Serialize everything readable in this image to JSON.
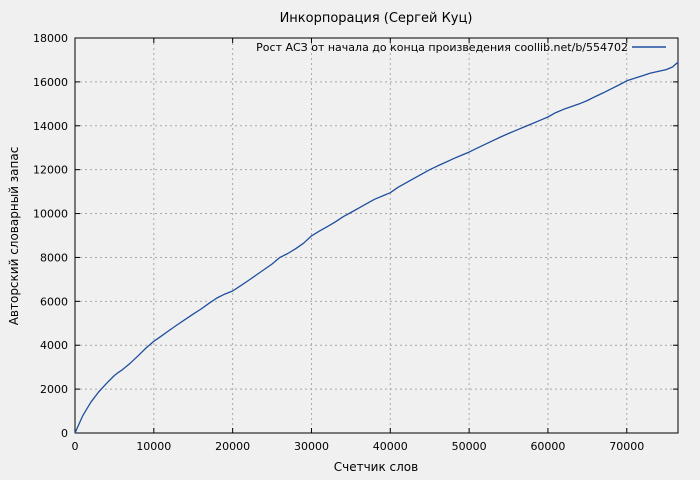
{
  "figure": {
    "background_color": "#f0f0f0",
    "plot_border_color": "#000000",
    "grid_color": "#a8a8a8",
    "text_color": "#000000"
  },
  "chart_data": {
    "type": "line",
    "title": "Инкорпорация (Сергей Куц)",
    "xlabel": "Счетчик слов",
    "ylabel": "Авторский словарный запас",
    "xlim": [
      0,
      76500
    ],
    "ylim": [
      0,
      18000
    ],
    "x_ticks": [
      0,
      10000,
      20000,
      30000,
      40000,
      50000,
      60000,
      70000
    ],
    "y_ticks": [
      0,
      2000,
      4000,
      6000,
      8000,
      10000,
      12000,
      14000,
      16000,
      18000
    ],
    "grid": true,
    "grid_style": "dashed",
    "legend_position": "top-right-inside",
    "series": [
      {
        "name": "Рост АСЗ от начала до конца произведения  coollib.net/b/554702",
        "color": "#1f4e9f",
        "points": [
          [
            0,
            0
          ],
          [
            1000,
            800
          ],
          [
            2000,
            1400
          ],
          [
            3000,
            1870
          ],
          [
            4000,
            2260
          ],
          [
            5000,
            2620
          ],
          [
            5500,
            2760
          ],
          [
            6000,
            2880
          ],
          [
            7000,
            3180
          ],
          [
            8000,
            3520
          ],
          [
            9000,
            3870
          ],
          [
            10000,
            4180
          ],
          [
            11000,
            4430
          ],
          [
            12000,
            4690
          ],
          [
            13000,
            4940
          ],
          [
            14000,
            5180
          ],
          [
            15000,
            5420
          ],
          [
            16000,
            5650
          ],
          [
            17000,
            5910
          ],
          [
            18000,
            6150
          ],
          [
            19000,
            6330
          ],
          [
            20000,
            6470
          ],
          [
            21000,
            6710
          ],
          [
            22000,
            6950
          ],
          [
            23000,
            7200
          ],
          [
            24000,
            7450
          ],
          [
            25000,
            7700
          ],
          [
            26000,
            8000
          ],
          [
            27000,
            8180
          ],
          [
            28000,
            8400
          ],
          [
            29000,
            8650
          ],
          [
            30000,
            8980
          ],
          [
            31000,
            9200
          ],
          [
            32000,
            9400
          ],
          [
            33000,
            9610
          ],
          [
            34000,
            9850
          ],
          [
            35000,
            10050
          ],
          [
            36000,
            10250
          ],
          [
            37000,
            10450
          ],
          [
            38000,
            10650
          ],
          [
            39000,
            10800
          ],
          [
            40000,
            10950
          ],
          [
            41000,
            11200
          ],
          [
            42000,
            11400
          ],
          [
            43000,
            11600
          ],
          [
            44000,
            11800
          ],
          [
            45000,
            12000
          ],
          [
            46000,
            12170
          ],
          [
            47000,
            12330
          ],
          [
            48000,
            12500
          ],
          [
            49000,
            12650
          ],
          [
            50000,
            12800
          ],
          [
            51000,
            12980
          ],
          [
            52000,
            13150
          ],
          [
            53000,
            13320
          ],
          [
            54000,
            13490
          ],
          [
            55000,
            13650
          ],
          [
            56000,
            13800
          ],
          [
            57000,
            13950
          ],
          [
            58000,
            14100
          ],
          [
            59000,
            14250
          ],
          [
            60000,
            14400
          ],
          [
            61000,
            14600
          ],
          [
            62000,
            14750
          ],
          [
            63000,
            14880
          ],
          [
            64000,
            15000
          ],
          [
            65000,
            15150
          ],
          [
            66000,
            15330
          ],
          [
            67000,
            15500
          ],
          [
            68000,
            15680
          ],
          [
            69000,
            15860
          ],
          [
            70000,
            16050
          ],
          [
            71000,
            16170
          ],
          [
            72000,
            16280
          ],
          [
            73000,
            16400
          ],
          [
            74000,
            16480
          ],
          [
            75000,
            16560
          ],
          [
            75800,
            16680
          ],
          [
            76500,
            16900
          ]
        ]
      }
    ]
  }
}
